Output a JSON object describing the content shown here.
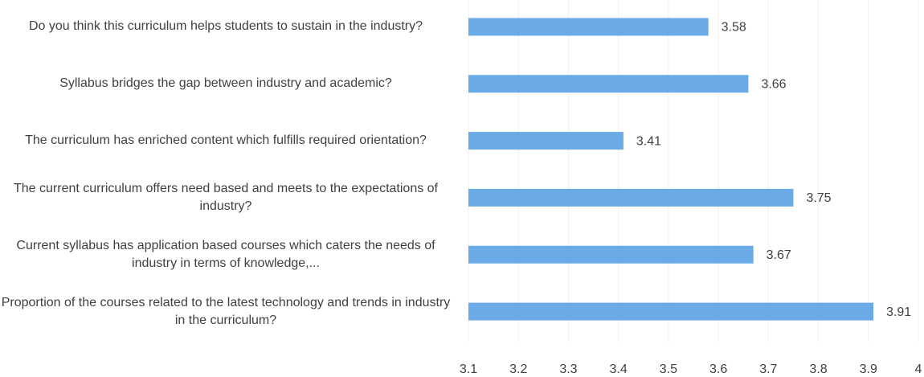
{
  "chart_data": {
    "type": "barh",
    "categories": [
      "Do you think this curriculum helps students to sustain in the industry?",
      "Syllabus bridges the gap between industry and academic?",
      "The curriculum has enriched content which fulfills required orientation?",
      "The current curriculum offers need based and meets to the expectations of industry?",
      "Current syllabus has application based courses which caters the needs of industry in terms of knowledge,...",
      "Proportion of the courses related to the latest technology and trends in industry in the curriculum?"
    ],
    "values": [
      3.58,
      3.66,
      3.41,
      3.75,
      3.67,
      3.91
    ],
    "color": "#6aaae6",
    "xlim": [
      3.1,
      4
    ],
    "xticks": [
      3.1,
      3.2,
      3.3,
      3.4,
      3.5,
      3.6,
      3.7,
      3.8,
      3.9,
      4
    ],
    "grid": true
  }
}
